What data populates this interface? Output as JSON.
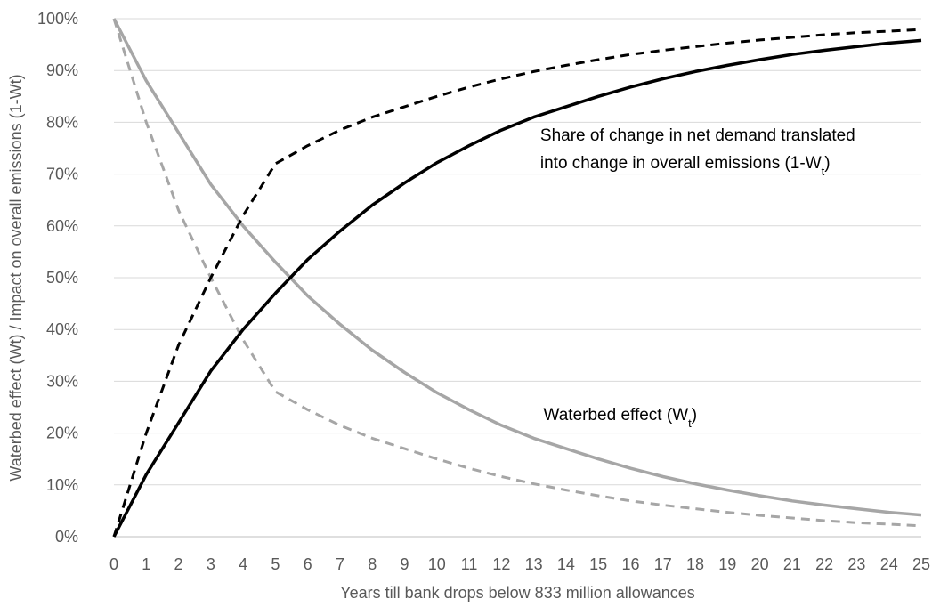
{
  "chart_data": {
    "type": "line",
    "xlabel": "Years till bank drops below 833 million allowances",
    "ylabel": "Waterbed effect (Wt) / Impact on overall emissions (1-Wt)",
    "xlim": [
      0,
      25
    ],
    "ylim": [
      0,
      1
    ],
    "x_ticks": [
      "0",
      "1",
      "2",
      "3",
      "4",
      "5",
      "6",
      "7",
      "8",
      "9",
      "10",
      "11",
      "12",
      "13",
      "14",
      "15",
      "16",
      "17",
      "18",
      "19",
      "20",
      "21",
      "22",
      "23",
      "24",
      "25"
    ],
    "y_ticks": [
      "0%",
      "10%",
      "20%",
      "30%",
      "40%",
      "50%",
      "60%",
      "70%",
      "80%",
      "90%",
      "100%"
    ],
    "grid": "horizontal",
    "legend": "none",
    "x": [
      0,
      1,
      2,
      3,
      4,
      5,
      6,
      7,
      8,
      9,
      10,
      11,
      12,
      13,
      14,
      15,
      16,
      17,
      18,
      19,
      20,
      21,
      22,
      23,
      24,
      25
    ],
    "series": [
      {
        "style": "solid",
        "color": "#000000",
        "values": [
          0.0,
          0.12,
          0.22,
          0.32,
          0.4,
          0.47,
          0.535,
          0.59,
          0.64,
          0.683,
          0.722,
          0.755,
          0.785,
          0.81,
          0.83,
          0.85,
          0.868,
          0.884,
          0.898,
          0.91,
          0.921,
          0.931,
          0.939,
          0.946,
          0.953,
          0.958
        ]
      },
      {
        "style": "solid",
        "color": "#a6a6a6",
        "values": [
          1.0,
          0.88,
          0.78,
          0.68,
          0.6,
          0.53,
          0.465,
          0.41,
          0.36,
          0.317,
          0.278,
          0.245,
          0.215,
          0.19,
          0.17,
          0.15,
          0.132,
          0.116,
          0.102,
          0.09,
          0.079,
          0.069,
          0.061,
          0.054,
          0.047,
          0.042
        ]
      },
      {
        "style": "dashed",
        "color": "#000000",
        "values": [
          0.0,
          0.2,
          0.37,
          0.5,
          0.62,
          0.72,
          0.755,
          0.785,
          0.81,
          0.83,
          0.85,
          0.868,
          0.884,
          0.898,
          0.91,
          0.921,
          0.931,
          0.939,
          0.946,
          0.953,
          0.959,
          0.964,
          0.969,
          0.973,
          0.976,
          0.979
        ]
      },
      {
        "style": "dashed",
        "color": "#a6a6a6",
        "values": [
          1.0,
          0.8,
          0.63,
          0.5,
          0.38,
          0.28,
          0.245,
          0.215,
          0.19,
          0.17,
          0.15,
          0.132,
          0.116,
          0.102,
          0.09,
          0.079,
          0.069,
          0.061,
          0.054,
          0.047,
          0.041,
          0.036,
          0.031,
          0.027,
          0.024,
          0.021
        ]
      }
    ],
    "annotations": [
      {
        "line1": "Share of change in net demand translated",
        "line2_prefix": "into change in overall emissions (1-W",
        "sub": "t",
        "suffix": ")",
        "anchor_x": 13.2,
        "anchor_y": 0.765
      },
      {
        "prefix": "Waterbed effect (W",
        "sub": "t",
        "suffix": ")",
        "anchor_x": 13.3,
        "anchor_y": 0.225
      }
    ]
  }
}
